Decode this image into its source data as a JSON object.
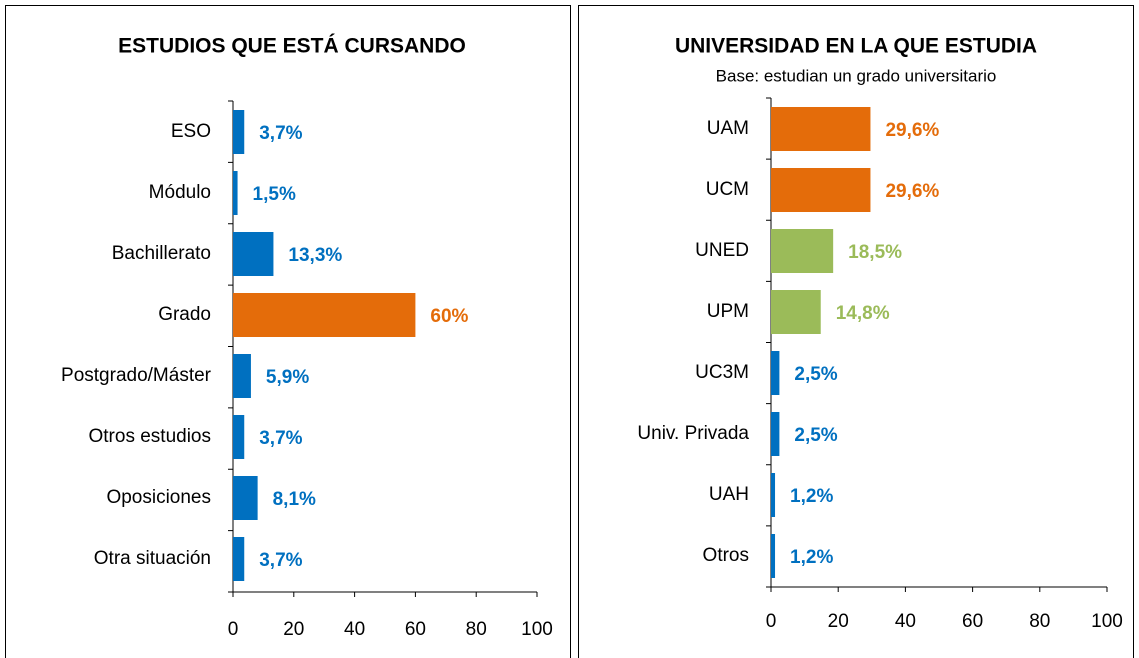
{
  "chart_data": [
    {
      "type": "bar",
      "orientation": "horizontal",
      "title": "ESTUDIOS QUE ESTÁ CURSANDO",
      "categories": [
        "ESO",
        "Módulo",
        "Bachillerato",
        "Grado",
        "Postgrado/Máster",
        "Otros estudios",
        "Oposiciones",
        "Otra situación"
      ],
      "values": [
        3.7,
        1.5,
        13.3,
        60,
        5.9,
        3.7,
        8.1,
        3.7
      ],
      "value_labels": [
        "3,7%",
        "1,5%",
        "13,3%",
        "60%",
        "5,9%",
        "3,7%",
        "8,1%",
        "3,7%"
      ],
      "colors": [
        "#0070c0",
        "#0070c0",
        "#0070c0",
        "#e46c0a",
        "#0070c0",
        "#0070c0",
        "#0070c0",
        "#0070c0"
      ],
      "xlim": [
        0,
        100
      ],
      "xticks": [
        0,
        20,
        40,
        60,
        80,
        100
      ],
      "grid": false
    },
    {
      "type": "bar",
      "orientation": "horizontal",
      "title": "UNIVERSIDAD EN LA QUE ESTUDIA",
      "subtitle": "Base: estudian un grado universitario",
      "categories": [
        "UAM",
        "UCM",
        "UNED",
        "UPM",
        "UC3M",
        "Univ. Privada",
        "UAH",
        "Otros"
      ],
      "values": [
        29.6,
        29.6,
        18.5,
        14.8,
        2.5,
        2.5,
        1.2,
        1.2
      ],
      "value_labels": [
        "29,6%",
        "29,6%",
        "18,5%",
        "14,8%",
        "2,5%",
        "2,5%",
        "1,2%",
        "1,2%"
      ],
      "colors": [
        "#e46c0a",
        "#e46c0a",
        "#9bbb59",
        "#9bbb59",
        "#0070c0",
        "#0070c0",
        "#0070c0",
        "#0070c0"
      ],
      "xlim": [
        0,
        100
      ],
      "xticks": [
        0,
        20,
        40,
        60,
        80,
        100
      ],
      "grid": false
    }
  ]
}
